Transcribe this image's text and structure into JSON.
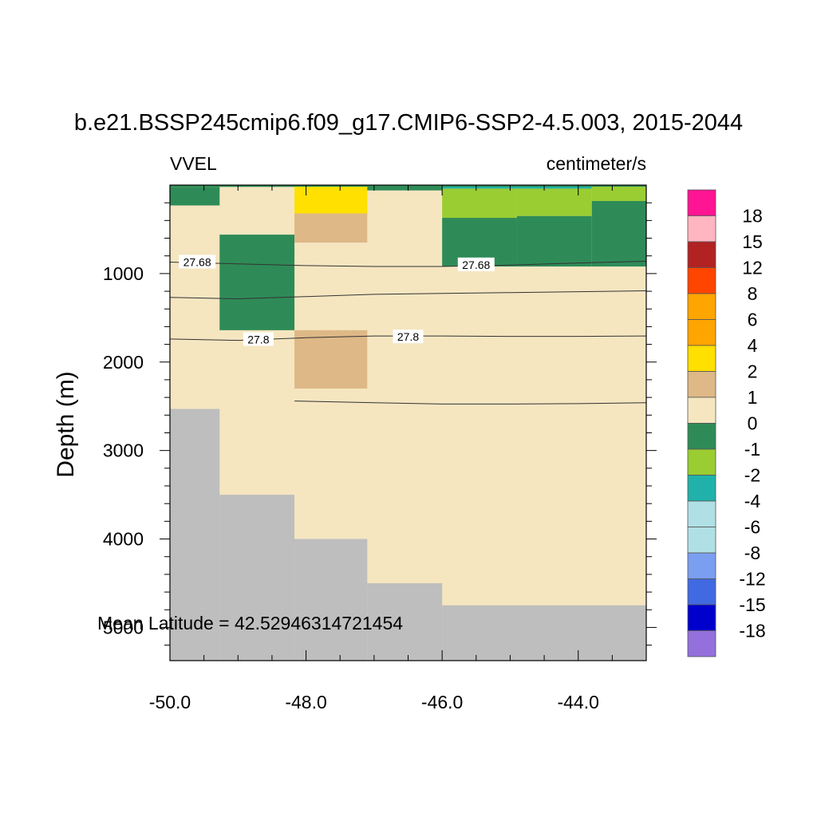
{
  "chart_data": {
    "type": "heatmap",
    "title": "b.e21.BSSP245cmip6.f09_g17.CMIP6-SSP2-4.5.003, 2015-2044",
    "left_label": "VVEL",
    "right_label": "centimeter/s",
    "xlabel": "",
    "ylabel": "Depth (m)",
    "annotation": "Mean Latitude = 42.52946314721454",
    "xlim": [
      -50.0,
      -43.0
    ],
    "ylim": [
      0,
      5375
    ],
    "x_ticks": [
      -50.0,
      -48.0,
      -46.0,
      -44.0
    ],
    "x_tick_labels": [
      "-50.0",
      "-48.0",
      "-46.0",
      "-44.0"
    ],
    "y_ticks": [
      1000,
      2000,
      3000,
      4000,
      5000
    ],
    "y_tick_labels": [
      "1000",
      "2000",
      "3000",
      "4000",
      "5000"
    ],
    "colorbar": {
      "levels": [
        "18",
        "15",
        "12",
        "8",
        "6",
        "4",
        "2",
        "1",
        "0",
        "-1",
        "-2",
        "-4",
        "-6",
        "-8",
        "-12",
        "-15",
        "-18"
      ],
      "colors": [
        "#ff1493",
        "#ffb6c1",
        "#b22222",
        "#ff4500",
        "#ffa500",
        "#ffa500",
        "#ffe000",
        "#deb887",
        "#f5e6c0",
        "#2e8b57",
        "#9acd32",
        "#20b2aa",
        "#b0e0e6",
        "#b0e0e6",
        "#7b9ff0",
        "#4169e1",
        "#0000cd",
        "#9370db"
      ]
    },
    "land_color": "#bebebe",
    "background_color": "#f5e6c0",
    "cells": [
      {
        "x0": -50.0,
        "x1": -49.27,
        "y0": 0,
        "y1": 20,
        "color": "#2e8b57"
      },
      {
        "x0": -50.0,
        "x1": -49.27,
        "y0": 20,
        "y1": 230,
        "color": "#2e8b57"
      },
      {
        "x0": -49.27,
        "x1": -48.17,
        "y0": 0,
        "y1": 20,
        "color": "#2e8b57"
      },
      {
        "x0": -48.17,
        "x1": -47.1,
        "y0": 0,
        "y1": 320,
        "color": "#ffe000"
      },
      {
        "x0": -48.17,
        "x1": -47.1,
        "y0": 320,
        "y1": 650,
        "color": "#deb887"
      },
      {
        "x0": -47.1,
        "x1": -46.0,
        "y0": 0,
        "y1": 60,
        "color": "#2e8b57"
      },
      {
        "x0": -46.0,
        "x1": -44.9,
        "y0": 0,
        "y1": 40,
        "color": "#20b2aa"
      },
      {
        "x0": -44.9,
        "x1": -43.8,
        "y0": 0,
        "y1": 40,
        "color": "#20b2aa"
      },
      {
        "x0": -46.0,
        "x1": -44.9,
        "y0": 40,
        "y1": 370,
        "color": "#9acd32"
      },
      {
        "x0": -44.9,
        "x1": -43.8,
        "y0": 40,
        "y1": 350,
        "color": "#9acd32"
      },
      {
        "x0": -43.8,
        "x1": -43.0,
        "y0": 0,
        "y1": 180,
        "color": "#9acd32"
      },
      {
        "x0": -46.0,
        "x1": -44.9,
        "y0": 370,
        "y1": 920,
        "color": "#2e8b57"
      },
      {
        "x0": -44.9,
        "x1": -43.8,
        "y0": 350,
        "y1": 920,
        "color": "#2e8b57"
      },
      {
        "x0": -43.8,
        "x1": -43.0,
        "y0": 180,
        "y1": 920,
        "color": "#2e8b57"
      },
      {
        "x0": -49.27,
        "x1": -48.17,
        "y0": 560,
        "y1": 1640,
        "color": "#2e8b57"
      },
      {
        "x0": -48.17,
        "x1": -47.1,
        "y0": 1640,
        "y1": 2300,
        "color": "#deb887"
      }
    ],
    "land": [
      {
        "x0": -50.0,
        "x1": -49.27,
        "y0": 2530,
        "y1": 5375
      },
      {
        "x0": -49.27,
        "x1": -48.17,
        "y0": 3500,
        "y1": 5375
      },
      {
        "x0": -48.17,
        "x1": -47.1,
        "y0": 4000,
        "y1": 5375
      },
      {
        "x0": -47.1,
        "x1": -46.0,
        "y0": 4500,
        "y1": 5375
      },
      {
        "x0": -46.0,
        "x1": -43.0,
        "y0": 4750,
        "y1": 5375
      }
    ],
    "contours": [
      {
        "label": "27.68",
        "label_at": [
          [
            -49.6,
            870
          ],
          [
            -45.5,
            900
          ]
        ],
        "points": [
          [
            -50.0,
            870
          ],
          [
            -49.0,
            890
          ],
          [
            -48.0,
            910
          ],
          [
            -47.0,
            920
          ],
          [
            -46.0,
            920
          ],
          [
            -45.0,
            905
          ],
          [
            -44.0,
            880
          ],
          [
            -43.0,
            860
          ]
        ]
      },
      {
        "label": "",
        "label_at": [],
        "points": [
          [
            -50.0,
            1270
          ],
          [
            -49.0,
            1285
          ],
          [
            -48.0,
            1260
          ],
          [
            -47.0,
            1235
          ],
          [
            -46.0,
            1225
          ],
          [
            -45.0,
            1215
          ],
          [
            -44.0,
            1205
          ],
          [
            -43.0,
            1195
          ]
        ]
      },
      {
        "label": "27.8",
        "label_at": [
          [
            -48.7,
            1745
          ],
          [
            -46.5,
            1715
          ]
        ],
        "points": [
          [
            -50.0,
            1740
          ],
          [
            -49.0,
            1755
          ],
          [
            -48.0,
            1725
          ],
          [
            -47.0,
            1705
          ],
          [
            -46.0,
            1705
          ],
          [
            -45.0,
            1710
          ],
          [
            -44.0,
            1710
          ],
          [
            -43.0,
            1705
          ]
        ]
      },
      {
        "label": "",
        "label_at": [],
        "points": [
          [
            -48.17,
            2440
          ],
          [
            -47.0,
            2460
          ],
          [
            -46.0,
            2475
          ],
          [
            -45.0,
            2475
          ],
          [
            -44.0,
            2470
          ],
          [
            -43.0,
            2460
          ]
        ]
      }
    ]
  }
}
